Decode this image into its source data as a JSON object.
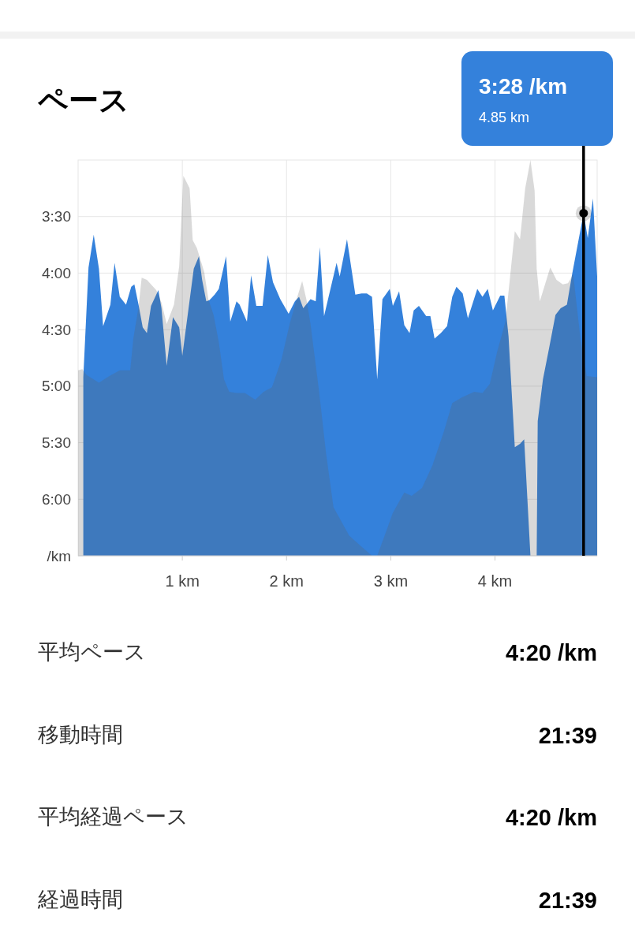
{
  "chart_data": [
    {
      "type": "area",
      "title": "ペース",
      "xlim": [
        0,
        4.98
      ],
      "ylim": [
        6.5,
        3.0
      ],
      "xticks": [
        {
          "value": 1,
          "label": "1 km"
        },
        {
          "value": 2,
          "label": "2 km"
        },
        {
          "value": 3,
          "label": "3 km"
        },
        {
          "value": 4,
          "label": "4 km"
        }
      ],
      "yticks": [
        {
          "value": 3.5,
          "label": "3:30"
        },
        {
          "value": 4,
          "label": "4:00"
        },
        {
          "value": 4.5,
          "label": "4:30"
        },
        {
          "value": 5,
          "label": "5:00"
        },
        {
          "value": 5.5,
          "label": "5:30"
        },
        {
          "value": 6,
          "label": "6:00"
        },
        {
          "value": 6.5,
          "label": "/km"
        }
      ],
      "grid": true,
      "series": [
        {
          "color": "#3481db",
          "x": [
            0.05,
            0.05,
            0.1,
            0.15,
            0.2,
            0.24,
            0.31,
            0.35,
            0.4,
            0.46,
            0.51,
            0.54,
            0.58,
            0.62,
            0.66,
            0.7,
            0.77,
            0.8,
            0.85,
            0.91,
            0.97,
            1.0,
            1.06,
            1.11,
            1.16,
            1.19,
            1.23,
            1.26,
            1.31,
            1.35,
            1.42,
            1.46,
            1.52,
            1.55,
            1.62,
            1.66,
            1.71,
            1.77,
            1.82,
            1.87,
            1.94,
            2.02,
            2.08,
            2.12,
            2.16,
            2.23,
            2.28,
            2.32,
            2.36,
            2.48,
            2.51,
            2.58,
            2.66,
            2.72,
            2.77,
            2.82,
            2.87,
            2.92,
            2.99,
            3.02,
            3.08,
            3.13,
            3.18,
            3.22,
            3.27,
            3.34,
            3.38,
            3.42,
            3.48,
            3.54,
            3.59,
            3.63,
            3.69,
            3.74,
            3.83,
            3.88,
            3.93,
            3.98,
            4.05,
            4.09,
            4.13,
            4.19,
            4.24,
            4.28,
            4.34,
            4.4,
            4.41,
            4.46,
            4.52,
            4.58,
            4.63,
            4.69,
            4.74,
            4.85,
            4.89,
            4.94,
            4.98,
            4.98
          ],
          "values": [
            6.5,
            4.92,
            3.95,
            3.66,
            3.96,
            4.47,
            4.28,
            3.91,
            4.21,
            4.28,
            4.12,
            4.1,
            4.28,
            4.48,
            4.53,
            4.29,
            4.15,
            4.31,
            4.82,
            4.39,
            4.48,
            4.73,
            4.31,
            3.96,
            3.85,
            4.06,
            4.25,
            4.24,
            4.19,
            4.14,
            3.85,
            4.43,
            4.25,
            4.28,
            4.43,
            4.02,
            4.29,
            4.29,
            3.84,
            4.08,
            4.23,
            4.36,
            4.25,
            4.21,
            4.31,
            4.23,
            4.25,
            3.77,
            4.38,
            3.91,
            4.03,
            3.7,
            4.19,
            4.18,
            4.18,
            4.21,
            4.94,
            4.23,
            4.14,
            4.29,
            4.16,
            4.46,
            4.53,
            4.33,
            4.29,
            4.38,
            4.38,
            4.58,
            4.53,
            4.47,
            4.21,
            4.12,
            4.18,
            4.4,
            4.14,
            4.21,
            4.14,
            4.33,
            4.2,
            4.2,
            4.56,
            5.54,
            5.51,
            5.47,
            6.5,
            6.5,
            5.31,
            4.94,
            4.66,
            4.37,
            4.31,
            4.28,
            4.01,
            3.47,
            3.69,
            3.34,
            4.03,
            6.5
          ]
        },
        {
          "color": "#d9d9d9",
          "x": [
            0,
            0,
            0.04,
            0.08,
            0.2,
            0.3,
            0.4,
            0.5,
            0.53,
            0.58,
            0.61,
            0.66,
            0.75,
            0.8,
            0.85,
            0.92,
            0.97,
            1.01,
            1.07,
            1.1,
            1.14,
            1.21,
            1.25,
            1.3,
            1.35,
            1.4,
            1.45,
            1.52,
            1.6,
            1.7,
            1.78,
            1.86,
            1.95,
            2.03,
            2.1,
            2.15,
            2.19,
            2.23,
            2.31,
            2.38,
            2.45,
            2.6,
            2.72,
            2.82,
            2.87,
            2.95,
            3.02,
            3.13,
            3.2,
            3.3,
            3.4,
            3.51,
            3.59,
            3.68,
            3.8,
            3.88,
            3.95,
            4.02,
            4.1,
            4.19,
            4.24,
            4.29,
            4.34,
            4.38,
            4.4,
            4.43,
            4.53,
            4.59,
            4.65,
            4.7,
            4.75,
            4.82,
            4.88,
            4.98,
            4.98
          ],
          "values": [
            6.5,
            4.86,
            4.85,
            4.9,
            4.97,
            4.91,
            4.86,
            4.86,
            4.58,
            4.3,
            4.04,
            4.06,
            4.15,
            4.26,
            4.45,
            4.28,
            3.94,
            3.14,
            3.25,
            3.71,
            3.78,
            3.99,
            4.23,
            4.37,
            4.61,
            4.94,
            5.05,
            5.06,
            5.06,
            5.12,
            5.05,
            5.01,
            4.77,
            4.45,
            4.22,
            4.07,
            4.23,
            4.45,
            5.03,
            5.6,
            6.07,
            6.32,
            6.42,
            6.5,
            6.5,
            6.3,
            6.12,
            5.94,
            5.97,
            5.9,
            5.7,
            5.4,
            5.15,
            5.1,
            5.05,
            5.06,
            4.98,
            4.7,
            4.43,
            3.63,
            3.7,
            3.25,
            3.0,
            3.27,
            3.96,
            4.25,
            3.95,
            4.06,
            4.1,
            4.09,
            4.01,
            4.58,
            4.91,
            4.92,
            6.5
          ]
        }
      ],
      "ref_lines": [
        {
          "axis": "x",
          "value": 4.85,
          "color": "#000000"
        }
      ],
      "annotations": [
        "3:28 /km",
        "4.85 km"
      ]
    },
    {
      "type": "other",
      "annotations": [
        "平均ペース",
        "4:20 /km",
        "移動時間",
        "21:39",
        "平均経過ペース",
        "4:20 /km",
        "経過時間",
        "21:39"
      ]
    }
  ]
}
